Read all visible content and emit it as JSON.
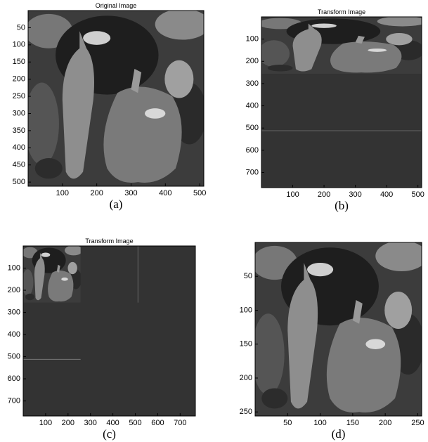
{
  "panels": [
    {
      "title": "Original Image",
      "caption": "(a)",
      "xlim": [
        0,
        512
      ],
      "ylim": [
        0,
        512
      ],
      "xticks": [
        100,
        200,
        300,
        400,
        500
      ],
      "yticks": [
        50,
        100,
        150,
        200,
        250,
        300,
        350,
        400,
        450,
        500
      ]
    },
    {
      "title": "Transform Image",
      "caption": "(b)",
      "xlim": [
        0,
        512
      ],
      "ylim": [
        0,
        768
      ],
      "xticks": [
        100,
        200,
        300,
        400,
        500
      ],
      "yticks": [
        100,
        200,
        300,
        400,
        500,
        600,
        700
      ]
    },
    {
      "title": "Transform Image",
      "caption": "(c)",
      "xlim": [
        0,
        768
      ],
      "ylim": [
        0,
        768
      ],
      "xticks": [
        100,
        200,
        300,
        400,
        500,
        600,
        700
      ],
      "yticks": [
        100,
        200,
        300,
        400,
        500,
        600,
        700
      ]
    },
    {
      "caption": "(d)",
      "xlim": [
        0,
        256
      ],
      "ylim": [
        0,
        256
      ],
      "xticks": [
        50,
        100,
        150,
        200,
        250
      ],
      "yticks": [
        50,
        100,
        150,
        200,
        250
      ]
    }
  ]
}
